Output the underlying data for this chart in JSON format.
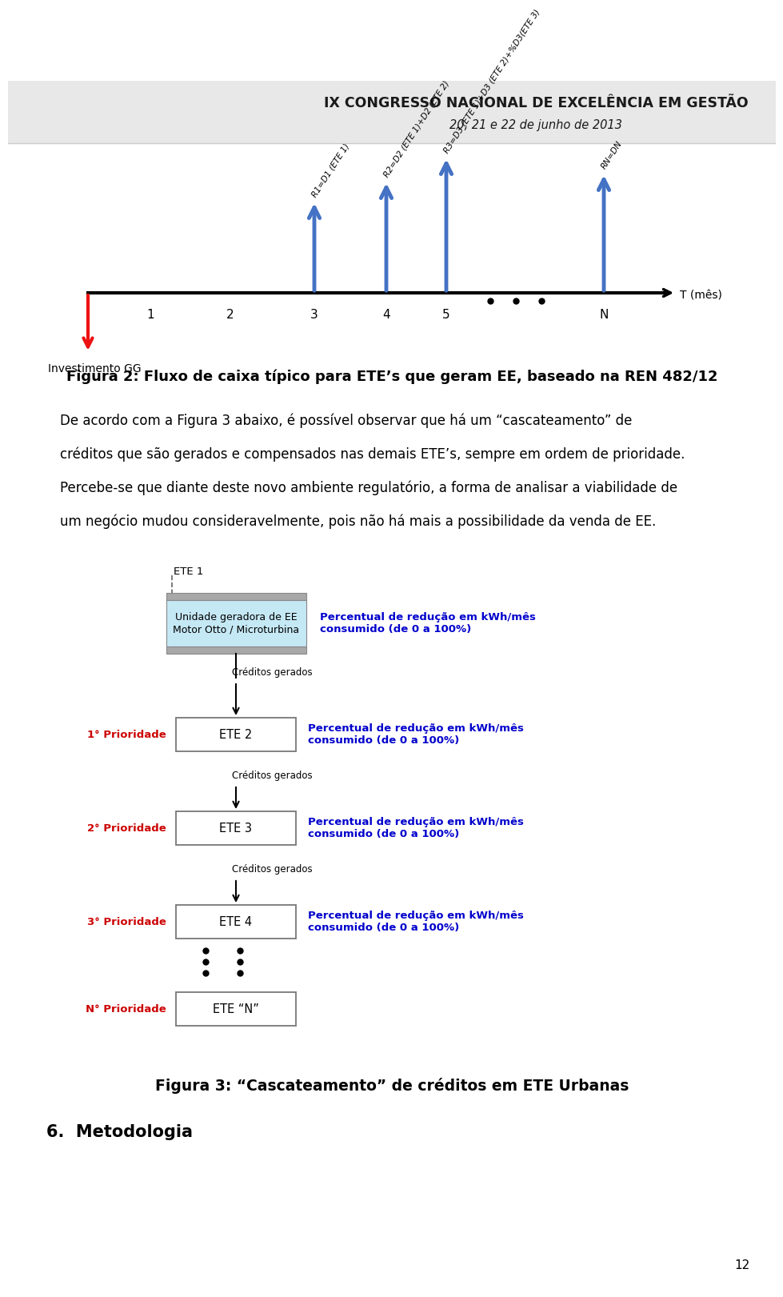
{
  "header_title": "IX CONGRESSO NACIONAL DE EXCELÊNCIA EM GESTÃO",
  "header_subtitle": "20, 21 e 22 de junho de 2013",
  "header_bg": "#e8e8e8",
  "fig_caption1": "Figura 2: Fluxo de caixa típico para ETE’s que geram EE, baseado na REN 482/12",
  "fig_caption2": "Figura 3: “Cascateamento” de créditos em ETE Urbanas",
  "section_title": "6.  Metodologia",
  "page_number": "12",
  "arrow_labels": [
    "R1=D1 (ETE 1)",
    "R2=D2 (ETE 1)+D2 (ETE 2)",
    "R3=D3 (ETE 1)+D3 (ETE 2)+%D3(ETE 3)",
    "RN=DN"
  ],
  "investimento_label": "Investimento GG",
  "t_label": "T (mês)",
  "blue_arrow_color": "#4472C4",
  "red_arrow_color": "#EE1111",
  "ete1_box_label": "ETE 1",
  "ete1_inner_label": "Unidade geradora de EE\nMotor Otto / Microturbina",
  "ete1_percent_label": "Percentual de redução em kWh/mês\nconsumido (de 0 a 100%)",
  "priority1_label": "1° Prioridade",
  "ete2_label": "ETE 2",
  "ete2_percent_label": "Percentual de redução em kWh/mês\nconsumido (de 0 a 100%)",
  "creditos_label": "Créditos gerados",
  "priority2_label": "2° Prioridade",
  "ete3_label": "ETE 3",
  "ete3_percent_label": "Percentual de redução em kWh/mês\nconsumido (de 0 a 100%)",
  "priority3_label": "3° Prioridade",
  "ete4_label": "ETE 4",
  "ete4_percent_label": "Percentual de redução em kWh/mês\nconsumido (de 0 a 100%)",
  "priorityN_label": "N° Prioridade",
  "eteN_label": "ETE “N”",
  "blue_text_color": "#0000CC",
  "red_text_color": "#CC0000",
  "body_lines": [
    "De acordo com a Figura 3 abaixo, é possível observar que há um “cascateamento” de",
    "créditos que são gerados e compensados nas demais ETE’s, sempre em ordem de prioridade.",
    "Percebe-se que diante deste novo ambiente regulatório, a forma de analisar a viabilidade de",
    "um negócio mudou consideravelmente, pois não há mais a possibilidade da venda de EE."
  ]
}
